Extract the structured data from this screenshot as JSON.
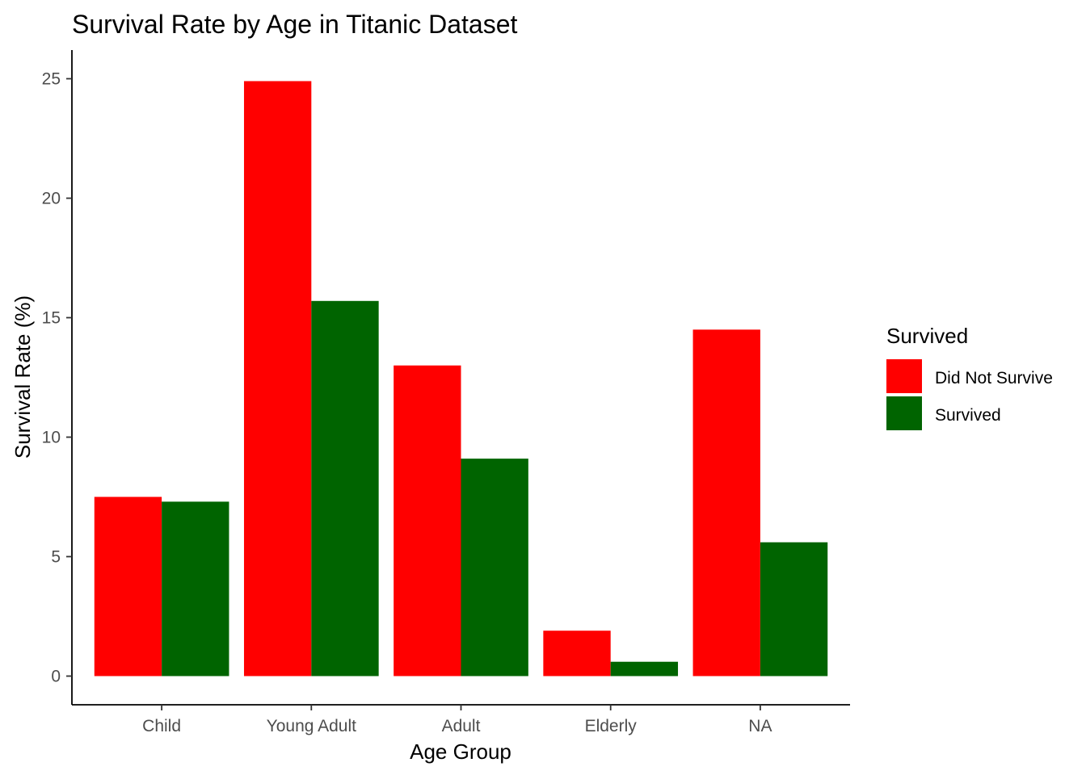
{
  "chart_data": {
    "type": "bar",
    "title": "Survival Rate by Age in Titanic Dataset",
    "xlabel": "Age Group",
    "ylabel": "Survival Rate (%)",
    "categories": [
      "Child",
      "Young Adult",
      "Adult",
      "Elderly",
      "NA"
    ],
    "series": [
      {
        "name": "Did Not Survive",
        "color": "#ff0000",
        "values": [
          7.5,
          24.9,
          13.0,
          1.9,
          14.5
        ]
      },
      {
        "name": "Survived",
        "color": "#006400",
        "values": [
          7.3,
          15.7,
          9.1,
          0.6,
          5.6
        ]
      }
    ],
    "ylim": [
      -1.2,
      26.2
    ],
    "yticks": [
      0,
      5,
      10,
      15,
      20,
      25
    ],
    "grid": false,
    "legend": {
      "title": "Survived",
      "position": "right"
    }
  }
}
